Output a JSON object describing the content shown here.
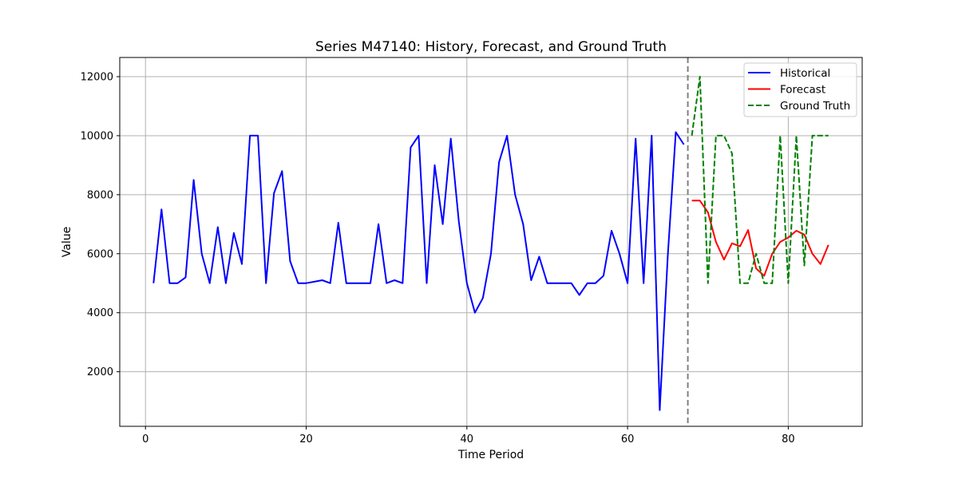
{
  "chart_data": {
    "type": "line",
    "title": "Series M47140: History, Forecast, and Ground Truth",
    "xlabel": "Time Period",
    "ylabel": "Value",
    "xlim": [
      -3.2,
      89.2
    ],
    "ylim": [
      150,
      12650
    ],
    "xticks": [
      0,
      20,
      40,
      60,
      80
    ],
    "yticks": [
      2000,
      4000,
      6000,
      8000,
      10000,
      12000
    ],
    "grid": true,
    "legend_position": "top-right",
    "forecast_start_line": 67.5,
    "series": [
      {
        "name": "Historical",
        "color": "#0000ff",
        "style": "solid",
        "x": [
          1,
          2,
          3,
          4,
          5,
          6,
          7,
          8,
          9,
          10,
          11,
          12,
          13,
          14,
          15,
          16,
          17,
          18,
          19,
          20,
          21,
          22,
          23,
          24,
          25,
          26,
          27,
          28,
          29,
          30,
          31,
          32,
          33,
          34,
          35,
          36,
          37,
          38,
          39,
          40,
          41,
          42,
          43,
          44,
          45,
          46,
          47,
          48,
          49,
          50,
          51,
          52,
          53,
          54,
          55,
          56,
          57,
          58,
          59,
          60,
          61,
          62,
          63,
          64,
          65,
          66,
          67
        ],
        "values": [
          5000,
          7500,
          5000,
          5000,
          5200,
          8500,
          6000,
          5000,
          6900,
          5000,
          6700,
          5650,
          10000,
          10000,
          5000,
          8050,
          8800,
          5750,
          5000,
          5000,
          5050,
          5100,
          5000,
          7050,
          5000,
          5000,
          5000,
          5000,
          7000,
          5000,
          5100,
          5000,
          9600,
          10000,
          5000,
          9000,
          7000,
          9900,
          7100,
          5000,
          4000,
          4500,
          6000,
          9100,
          10000,
          8000,
          7000,
          5100,
          5900,
          5000,
          5000,
          5000,
          5000,
          4600,
          5000,
          5000,
          5250,
          6780,
          6000,
          5000,
          9900,
          5000,
          10000,
          700,
          5900,
          10120,
          9700
        ]
      },
      {
        "name": "Forecast",
        "color": "#ff0000",
        "style": "solid",
        "x": [
          68,
          69,
          70,
          71,
          72,
          73,
          74,
          75,
          76,
          77,
          78,
          79,
          80,
          81,
          82,
          83,
          84,
          85
        ],
        "values": [
          7800,
          7800,
          7400,
          6400,
          5800,
          6350,
          6250,
          6800,
          5500,
          5250,
          6000,
          6400,
          6550,
          6780,
          6650,
          6000,
          5650,
          6300
        ]
      },
      {
        "name": "Ground Truth",
        "color": "#008000",
        "style": "dashed",
        "x": [
          68,
          69,
          70,
          71,
          72,
          73,
          74,
          75,
          76,
          77,
          78,
          79,
          80,
          81,
          82,
          83,
          84,
          85
        ],
        "values": [
          10000,
          12000,
          5000,
          10000,
          10000,
          9400,
          5000,
          5000,
          6000,
          5000,
          5000,
          10000,
          5000,
          10000,
          5600,
          10000,
          10000,
          10000
        ]
      }
    ]
  }
}
